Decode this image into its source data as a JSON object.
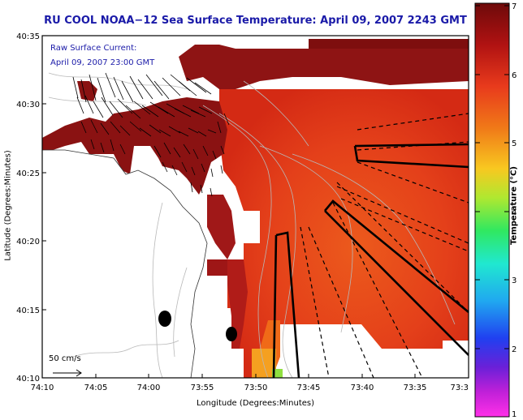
{
  "title": "RU COOL  NOAA−12  Sea Surface Temperature:  April 09, 2007 2243 GMT",
  "y_axis_label": "Latitude (Degrees:Minutes)",
  "x_axis_label": "Longitude (Degrees:Minutes)",
  "colorbar_label": "Temperature (°C)",
  "y_ticks": [
    "40:35",
    "40:30",
    "40:25",
    "40:20",
    "40:15",
    "40:10"
  ],
  "x_ticks": [
    "74:10",
    "74:05",
    "74:00",
    "73:55",
    "73:50",
    "73:45",
    "73:40",
    "73:35",
    "73:3"
  ],
  "colorbar_ticks": [
    "7",
    "6",
    "5",
    "4",
    "3",
    "2",
    "1"
  ],
  "current_legend": {
    "line1": "Raw Surface Current:",
    "line2": "April 09, 2007 23:00 GMT"
  },
  "scale_label": "50 cm/s",
  "colors": {
    "title": "#1a1aa8",
    "land": "#ffffff",
    "warm_sst": "#e8461a",
    "cool_coastal": "#8a1010"
  }
}
